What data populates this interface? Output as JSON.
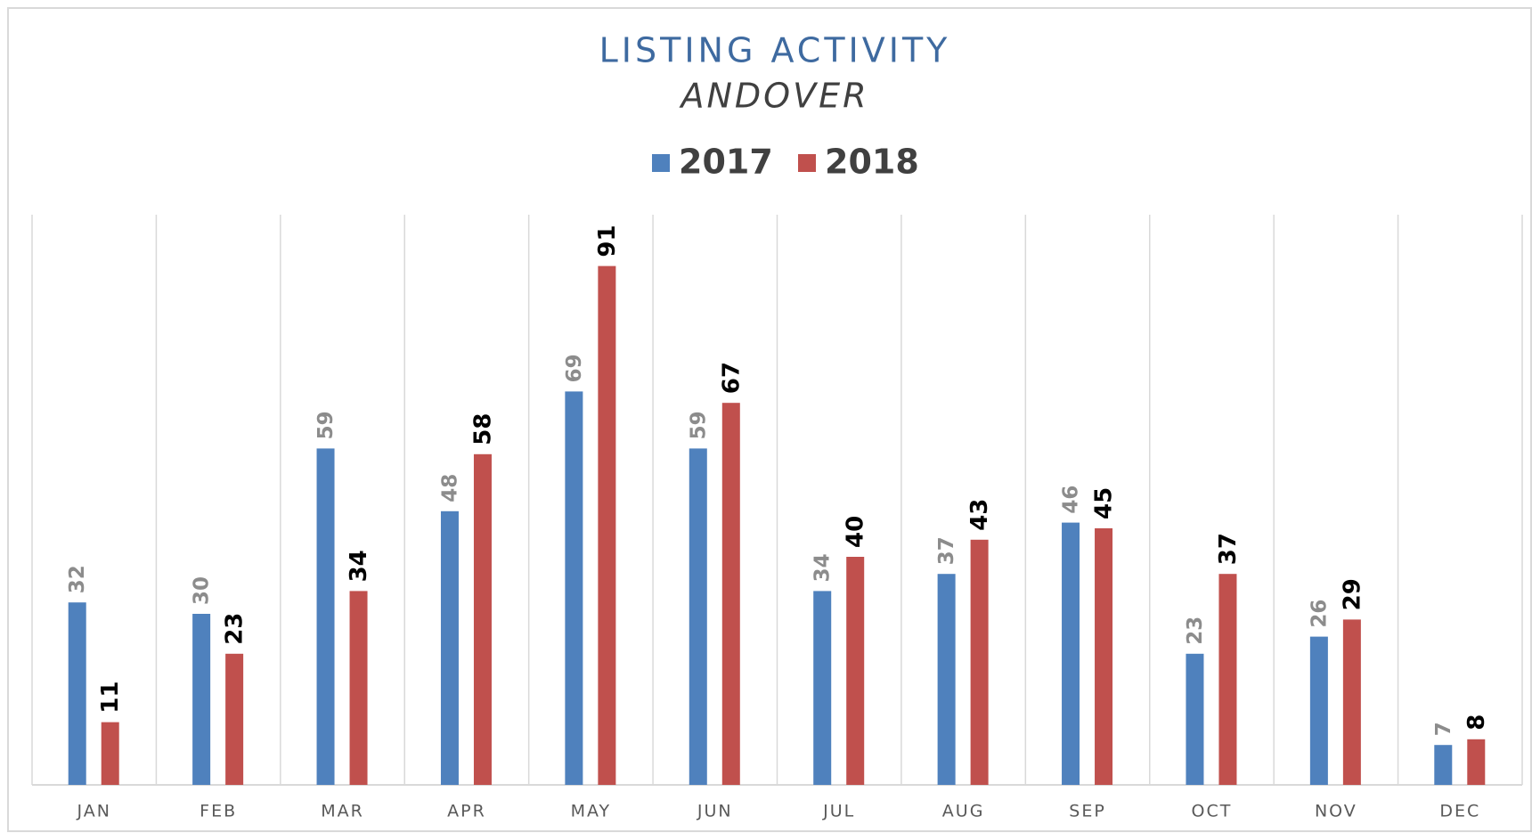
{
  "chart_data": {
    "type": "bar",
    "title": "LISTING ACTIVITY",
    "subtitle": "ANDOVER",
    "categories": [
      "JAN",
      "FEB",
      "MAR",
      "APR",
      "MAY",
      "JUN",
      "JUL",
      "AUG",
      "SEP",
      "OCT",
      "NOV",
      "DEC"
    ],
    "series": [
      {
        "name": "2017",
        "color": "#4f81bd",
        "values": [
          32,
          30,
          59,
          48,
          69,
          59,
          34,
          37,
          46,
          23,
          26,
          7
        ]
      },
      {
        "name": "2018",
        "color": "#c0504d",
        "values": [
          11,
          23,
          34,
          58,
          91,
          67,
          40,
          43,
          45,
          37,
          29,
          8
        ]
      }
    ],
    "ylim": [
      0,
      100
    ],
    "legend": "top",
    "grid": true
  }
}
